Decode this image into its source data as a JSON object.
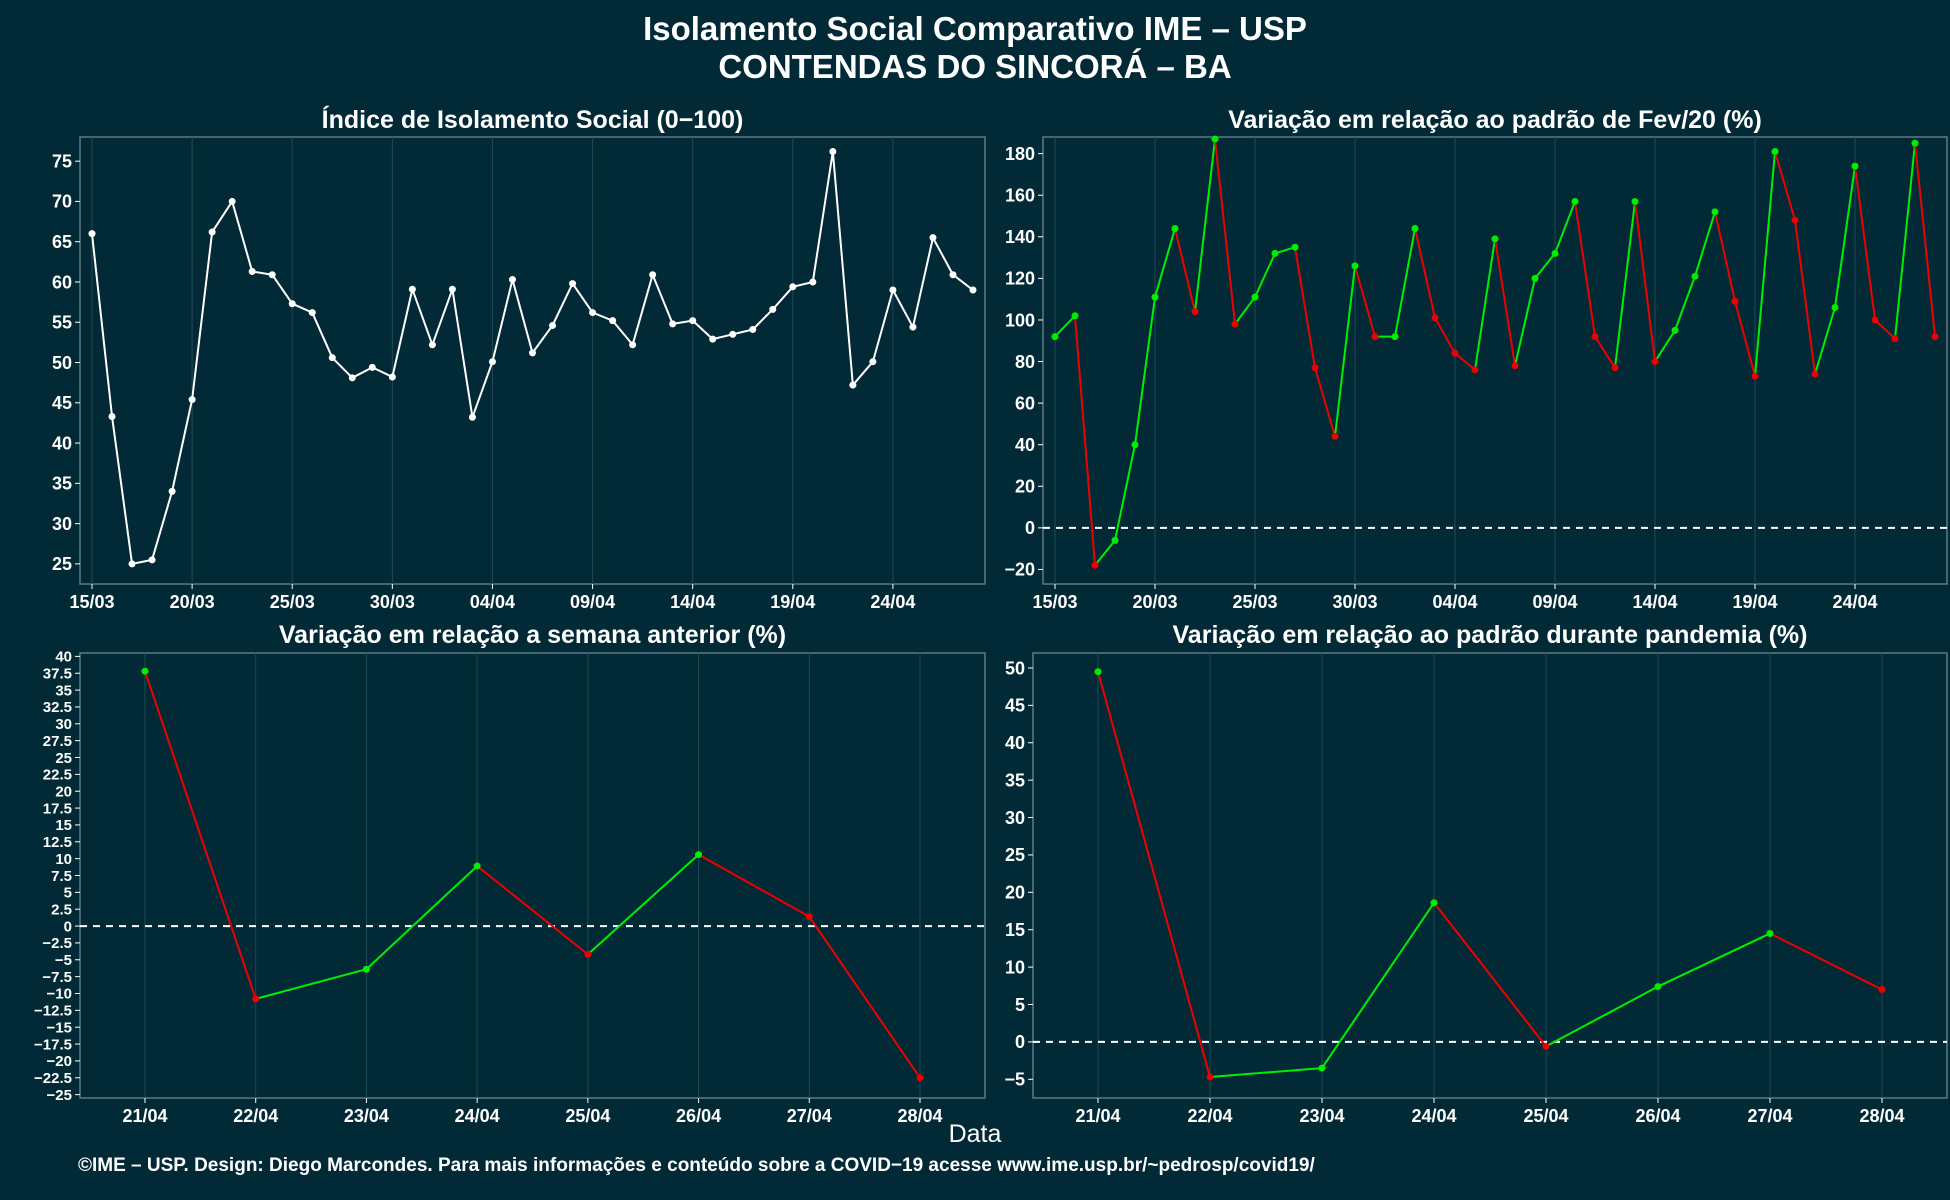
{
  "header": {
    "title_line1": "Isolamento Social Comparativo IME – USP",
    "title_line2": "CONTENDAS DO SINCORÁ – BA"
  },
  "xlabel": "Data",
  "footer": "©IME – USP. Design: Diego Marcondes. Para mais informações e conteúdo sobre a COVID−19 acesse www.ime.usp.br/~pedrosp/covid19/",
  "colors": {
    "background": "#022a36",
    "white_line": "#ffffff",
    "positive": "#00ee00",
    "negative": "#ee0000",
    "axis_text": "#ffffff",
    "grid": "#1f4a55"
  },
  "chart_data": [
    {
      "id": "indice",
      "type": "line",
      "title": "Índice de Isolamento Social (0−100)",
      "x_tick_labels": [
        "15/03",
        "20/03",
        "25/03",
        "30/03",
        "04/04",
        "09/04",
        "14/04",
        "19/04",
        "24/04"
      ],
      "x_tick_index": [
        0,
        5,
        10,
        15,
        20,
        25,
        30,
        35,
        40
      ],
      "ylim": [
        22.5,
        78
      ],
      "y_ticks": [
        25,
        30,
        35,
        40,
        45,
        50,
        55,
        60,
        65,
        70,
        75
      ],
      "color_mode": "white",
      "zero_line": false,
      "values": [
        66,
        43.3,
        25,
        25.5,
        34,
        45.4,
        66.2,
        70,
        61.3,
        60.9,
        57.3,
        56.2,
        50.6,
        48.1,
        49.4,
        48.2,
        59.1,
        52.2,
        59.1,
        43.2,
        50.1,
        60.3,
        51.2,
        54.6,
        59.8,
        56.2,
        55.2,
        52.2,
        60.9,
        54.8,
        55.2,
        52.9,
        53.5,
        54.1,
        56.6,
        59.4,
        60,
        76.2,
        47.2,
        50.1,
        59,
        54.4,
        65.5,
        60.9,
        59
      ]
    },
    {
      "id": "variacao-fev",
      "type": "line",
      "title": "Variação em relação ao padrão de Fev/20 (%)",
      "x_tick_labels": [
        "15/03",
        "20/03",
        "25/03",
        "30/03",
        "04/04",
        "09/04",
        "14/04",
        "19/04",
        "24/04"
      ],
      "x_tick_index": [
        0,
        5,
        10,
        15,
        20,
        25,
        30,
        35,
        40
      ],
      "ylim": [
        -27,
        188
      ],
      "y_ticks": [
        -20,
        0,
        20,
        40,
        60,
        80,
        100,
        120,
        140,
        160,
        180
      ],
      "color_mode": "trend",
      "zero_line": true,
      "values": [
        92,
        102,
        -18,
        -6,
        40,
        111,
        144,
        104,
        187,
        98,
        111,
        132,
        135,
        77,
        44,
        126,
        92,
        92,
        144,
        101,
        84,
        76,
        139,
        78,
        120,
        132,
        157,
        92,
        77,
        157,
        80,
        95,
        121,
        152,
        109,
        73,
        181,
        148,
        74,
        106,
        174,
        100,
        91,
        185,
        92
      ]
    },
    {
      "id": "semana-anterior",
      "type": "line",
      "title": "Variação em relação a semana anterior (%)",
      "x_tick_labels": [
        "21/04",
        "22/04",
        "23/04",
        "24/04",
        "25/04",
        "26/04",
        "27/04",
        "28/04"
      ],
      "x_tick_index": [
        0,
        1,
        2,
        3,
        4,
        5,
        6,
        7
      ],
      "ylim": [
        -25.5,
        40.5
      ],
      "y_ticks": [
        -25,
        -22.5,
        -20,
        -17.5,
        -15,
        -12.5,
        -10,
        -7.5,
        -5,
        -2.5,
        0,
        2.5,
        5,
        7.5,
        10,
        12.5,
        15,
        17.5,
        20,
        22.5,
        25,
        27.5,
        30,
        32.5,
        35,
        37.5,
        40
      ],
      "color_mode": "trend",
      "zero_line": true,
      "values": [
        37.8,
        -10.8,
        -6.4,
        8.9,
        -4.2,
        10.6,
        1.4,
        -22.5
      ]
    },
    {
      "id": "padrao-pandemia",
      "type": "line",
      "title": "Variação em relação ao padrão durante pandemia (%)",
      "x_tick_labels": [
        "21/04",
        "22/04",
        "23/04",
        "24/04",
        "25/04",
        "26/04",
        "27/04",
        "28/04"
      ],
      "x_tick_index": [
        0,
        1,
        2,
        3,
        4,
        5,
        6,
        7
      ],
      "ylim": [
        -7.5,
        52
      ],
      "y_ticks": [
        -5,
        0,
        5,
        10,
        15,
        20,
        25,
        30,
        35,
        40,
        45,
        50
      ],
      "color_mode": "trend",
      "zero_line": true,
      "values": [
        49.5,
        -4.7,
        -3.5,
        18.6,
        -0.6,
        7.4,
        14.5,
        7
      ]
    }
  ]
}
